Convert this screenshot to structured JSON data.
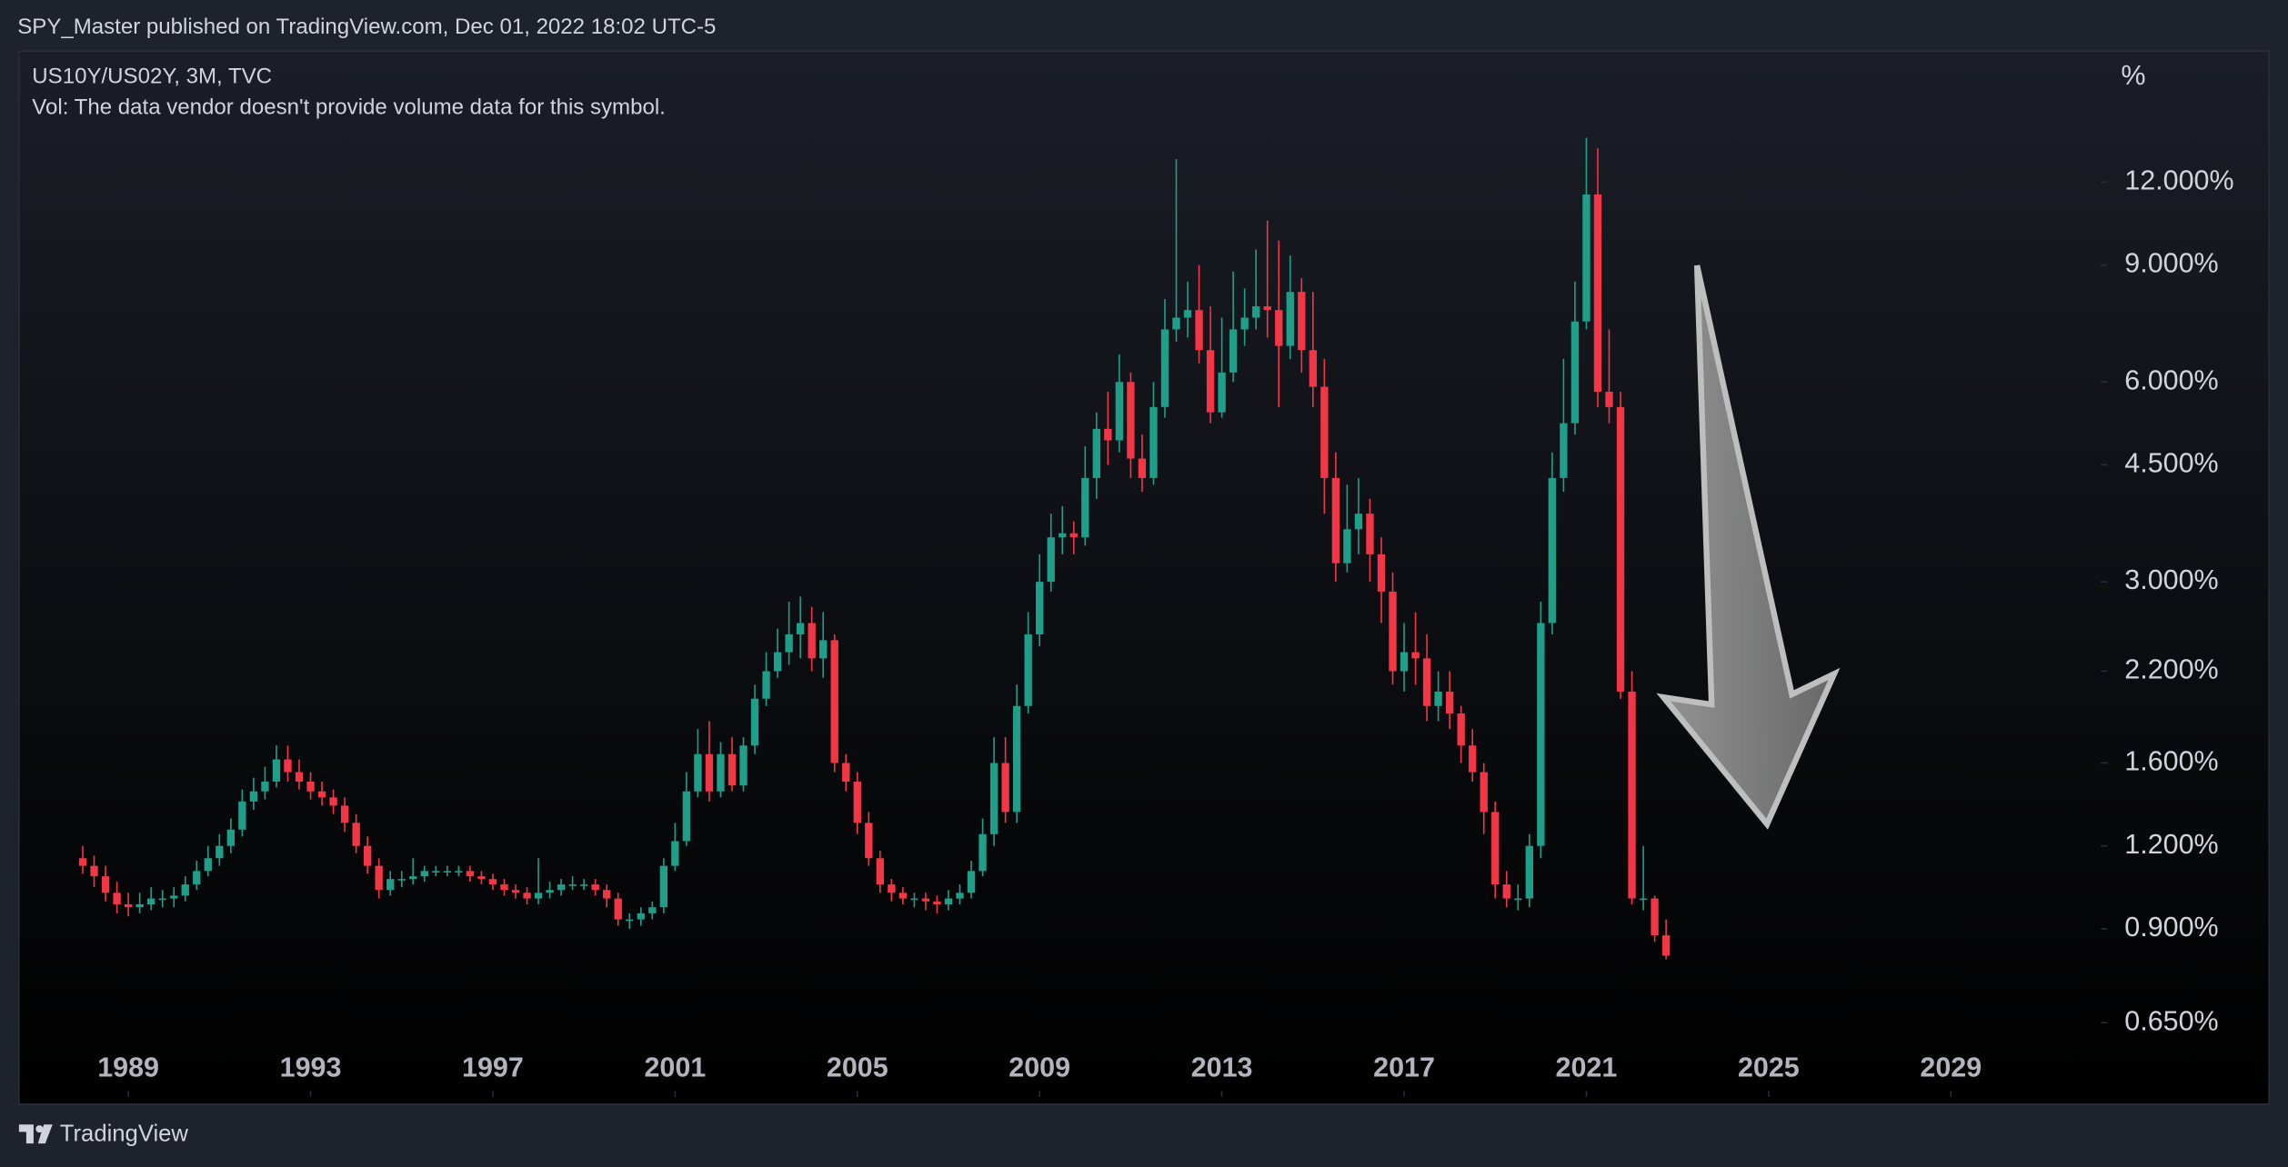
{
  "header": "SPY_Master published on TradingView.com, Dec 01, 2022 18:02 UTC-5",
  "footer": "TradingView",
  "chart_data": {
    "type": "candlestick",
    "title": "US10Y/US02Y, 3M, TVC",
    "subtitle": "Vol: The data vendor doesn't provide volume data for this symbol.",
    "y_axis_label": "%",
    "log_scale": true,
    "up_color": "#1f9e89",
    "down_color": "#f23645",
    "xlim": [
      1986.6,
      2032.3
    ],
    "xticks": [
      1989,
      1993,
      1997,
      2001,
      2005,
      2009,
      2013,
      2017,
      2021,
      2025,
      2029
    ],
    "ylim": [
      0.49,
      18.9
    ],
    "yticks": [
      {
        "value": 0.65,
        "label": "0.650%"
      },
      {
        "value": 0.9,
        "label": "0.900%"
      },
      {
        "value": 1.2,
        "label": "1.200%"
      },
      {
        "value": 1.6,
        "label": "1.600%"
      },
      {
        "value": 2.2,
        "label": "2.200%"
      },
      {
        "value": 3.0,
        "label": "3.000%"
      },
      {
        "value": 4.5,
        "label": "4.500%"
      },
      {
        "value": 6.0,
        "label": "6.000%"
      },
      {
        "value": 9.0,
        "label": "9.000%"
      },
      {
        "value": 12.0,
        "label": "12.000%"
      }
    ],
    "x": [
      1988,
      1988.25,
      1988.5,
      1988.75,
      1989,
      1989.25,
      1989.5,
      1989.75,
      1990,
      1990.25,
      1990.5,
      1990.75,
      1991,
      1991.25,
      1991.5,
      1991.75,
      1992,
      1992.25,
      1992.5,
      1992.75,
      1993,
      1993.25,
      1993.5,
      1993.75,
      1994,
      1994.25,
      1994.5,
      1994.75,
      1995,
      1995.25,
      1995.5,
      1995.75,
      1996,
      1996.25,
      1996.5,
      1996.75,
      1997,
      1997.25,
      1997.5,
      1997.75,
      1998,
      1998.25,
      1998.5,
      1998.75,
      1999,
      1999.25,
      1999.5,
      1999.75,
      2000,
      2000.25,
      2000.5,
      2000.75,
      2001,
      2001.25,
      2001.5,
      2001.75,
      2002,
      2002.25,
      2002.5,
      2002.75,
      2003,
      2003.25,
      2003.5,
      2003.75,
      2004,
      2004.25,
      2004.5,
      2004.75,
      2005,
      2005.25,
      2005.5,
      2005.75,
      2006,
      2006.25,
      2006.5,
      2006.75,
      2007,
      2007.25,
      2007.5,
      2007.75,
      2008,
      2008.25,
      2008.5,
      2008.75,
      2009,
      2009.25,
      2009.5,
      2009.75,
      2010,
      2010.25,
      2010.5,
      2010.75,
      2011,
      2011.25,
      2011.5,
      2011.75,
      2012,
      2012.25,
      2012.5,
      2012.75,
      2013,
      2013.25,
      2013.5,
      2013.75,
      2014,
      2014.25,
      2014.5,
      2014.75,
      2015,
      2015.25,
      2015.5,
      2015.75,
      2016,
      2016.25,
      2016.5,
      2016.75,
      2017,
      2017.25,
      2017.5,
      2017.75,
      2018,
      2018.25,
      2018.5,
      2018.75,
      2019,
      2019.25,
      2019.5,
      2019.75,
      2020,
      2020.25,
      2020.5,
      2020.75,
      2021,
      2021.25,
      2021.5,
      2021.75,
      2022,
      2022.25,
      2022.5,
      2022.75
    ],
    "open": [
      1.15,
      1.12,
      1.08,
      1.02,
      0.98,
      0.97,
      0.98,
      1.0,
      1.0,
      1.01,
      1.05,
      1.1,
      1.15,
      1.2,
      1.27,
      1.4,
      1.45,
      1.5,
      1.62,
      1.55,
      1.5,
      1.45,
      1.42,
      1.38,
      1.3,
      1.2,
      1.12,
      1.03,
      1.07,
      1.07,
      1.08,
      1.1,
      1.1,
      1.1,
      1.1,
      1.08,
      1.07,
      1.05,
      1.03,
      1.02,
      1.0,
      1.02,
      1.03,
      1.05,
      1.05,
      1.05,
      1.03,
      1.0,
      0.93,
      0.93,
      0.95,
      0.97,
      1.12,
      1.22,
      1.45,
      1.65,
      1.45,
      1.65,
      1.48,
      1.7,
      2.0,
      2.2,
      2.35,
      2.5,
      2.6,
      2.3,
      2.45,
      1.6,
      1.5,
      1.3,
      1.15,
      1.05,
      1.02,
      1.0,
      1.0,
      0.99,
      0.98,
      1.0,
      1.02,
      1.1,
      1.25,
      1.6,
      1.35,
      1.95,
      2.5,
      3.0,
      3.5,
      3.55,
      3.5,
      4.3,
      5.1,
      4.9,
      6.0,
      4.6,
      4.3,
      5.5,
      7.2,
      7.5,
      7.7,
      6.7,
      5.4,
      6.2,
      7.2,
      7.5,
      7.8,
      7.7,
      6.8,
      8.2,
      6.7,
      5.9,
      4.3,
      3.2,
      3.6,
      3.8,
      3.3,
      2.9,
      2.2,
      2.35,
      2.3,
      1.95,
      2.05,
      1.9,
      1.7,
      1.55,
      1.35,
      1.05,
      1.0,
      1.0,
      1.2,
      2.6,
      4.3,
      5.2,
      7.4,
      11.5,
      5.8,
      5.5,
      2.05,
      1.0,
      1.0,
      0.88
    ],
    "high": [
      1.2,
      1.16,
      1.12,
      1.06,
      1.02,
      1.02,
      1.04,
      1.03,
      1.04,
      1.08,
      1.14,
      1.2,
      1.25,
      1.32,
      1.46,
      1.52,
      1.58,
      1.7,
      1.7,
      1.62,
      1.55,
      1.5,
      1.46,
      1.42,
      1.34,
      1.24,
      1.15,
      1.1,
      1.1,
      1.15,
      1.12,
      1.12,
      1.12,
      1.12,
      1.12,
      1.1,
      1.09,
      1.07,
      1.05,
      1.04,
      1.15,
      1.06,
      1.07,
      1.08,
      1.07,
      1.07,
      1.05,
      1.02,
      0.95,
      0.97,
      0.99,
      1.15,
      1.3,
      1.55,
      1.8,
      1.85,
      1.72,
      1.75,
      1.75,
      2.1,
      2.35,
      2.55,
      2.8,
      2.85,
      2.75,
      2.7,
      2.5,
      1.65,
      1.55,
      1.35,
      1.18,
      1.07,
      1.04,
      1.02,
      1.02,
      1.01,
      1.03,
      1.05,
      1.14,
      1.32,
      1.75,
      1.75,
      2.1,
      2.7,
      3.3,
      3.8,
      3.9,
      3.7,
      4.8,
      5.4,
      5.8,
      6.6,
      6.2,
      5.0,
      6.0,
      8.0,
      13.0,
      8.5,
      9.0,
      7.8,
      7.5,
      8.8,
      8.3,
      9.5,
      10.5,
      9.8,
      9.3,
      8.6,
      8.2,
      6.5,
      4.7,
      4.2,
      4.3,
      4.0,
      3.5,
      3.1,
      2.6,
      2.7,
      2.5,
      2.2,
      2.2,
      1.95,
      1.8,
      1.6,
      1.4,
      1.1,
      1.05,
      1.25,
      2.8,
      4.7,
      6.5,
      8.5,
      14.0,
      13.5,
      7.2,
      5.8,
      2.2,
      1.2,
      1.01,
      0.93
    ],
    "low": [
      1.09,
      1.04,
      0.99,
      0.95,
      0.94,
      0.95,
      0.96,
      0.97,
      0.97,
      0.99,
      1.03,
      1.08,
      1.12,
      1.17,
      1.24,
      1.36,
      1.41,
      1.47,
      1.5,
      1.46,
      1.41,
      1.38,
      1.34,
      1.26,
      1.17,
      1.09,
      1.0,
      1.01,
      1.04,
      1.05,
      1.06,
      1.08,
      1.08,
      1.08,
      1.06,
      1.05,
      1.03,
      1.01,
      1.0,
      0.98,
      0.98,
      1.0,
      1.01,
      1.03,
      1.03,
      1.01,
      0.97,
      0.91,
      0.9,
      0.91,
      0.93,
      0.95,
      1.1,
      1.2,
      1.42,
      1.4,
      1.42,
      1.45,
      1.45,
      1.65,
      1.95,
      2.15,
      2.25,
      2.3,
      2.2,
      2.15,
      1.55,
      1.45,
      1.25,
      1.12,
      1.02,
      0.99,
      0.98,
      0.97,
      0.96,
      0.95,
      0.96,
      0.98,
      1.0,
      1.08,
      1.2,
      1.3,
      1.3,
      1.9,
      2.4,
      2.9,
      3.3,
      3.3,
      3.4,
      4.0,
      4.5,
      4.7,
      4.3,
      4.1,
      4.2,
      5.3,
      6.9,
      7.0,
      6.4,
      5.2,
      5.3,
      6.0,
      6.8,
      7.2,
      7.0,
      5.5,
      6.5,
      6.2,
      5.5,
      3.8,
      3.0,
      3.1,
      3.3,
      3.0,
      2.6,
      2.1,
      2.05,
      2.1,
      1.85,
      1.85,
      1.8,
      1.6,
      1.5,
      1.25,
      1.0,
      0.97,
      0.96,
      0.97,
      1.15,
      2.5,
      4.1,
      5.0,
      7.2,
      5.5,
      5.2,
      2.0,
      0.98,
      0.96,
      0.86,
      0.81
    ],
    "close": [
      1.12,
      1.08,
      1.02,
      0.98,
      0.97,
      0.98,
      1.0,
      1.0,
      1.01,
      1.05,
      1.1,
      1.15,
      1.2,
      1.27,
      1.4,
      1.45,
      1.5,
      1.62,
      1.55,
      1.5,
      1.45,
      1.42,
      1.38,
      1.3,
      1.2,
      1.12,
      1.03,
      1.07,
      1.07,
      1.08,
      1.1,
      1.1,
      1.1,
      1.1,
      1.08,
      1.07,
      1.05,
      1.03,
      1.02,
      1.0,
      1.02,
      1.03,
      1.05,
      1.05,
      1.05,
      1.03,
      1.0,
      0.93,
      0.93,
      0.95,
      0.97,
      1.12,
      1.22,
      1.45,
      1.65,
      1.45,
      1.65,
      1.48,
      1.7,
      2.0,
      2.2,
      2.35,
      2.5,
      2.6,
      2.3,
      2.45,
      1.6,
      1.5,
      1.3,
      1.15,
      1.05,
      1.02,
      1.0,
      1.0,
      0.99,
      0.98,
      1.0,
      1.02,
      1.1,
      1.25,
      1.6,
      1.35,
      1.95,
      2.5,
      3.0,
      3.5,
      3.55,
      3.5,
      4.3,
      5.1,
      4.9,
      6.0,
      4.6,
      4.3,
      5.5,
      7.2,
      7.5,
      7.7,
      6.7,
      5.4,
      6.2,
      7.2,
      7.5,
      7.8,
      7.7,
      6.8,
      8.2,
      6.7,
      5.9,
      4.3,
      3.2,
      3.6,
      3.8,
      3.3,
      2.9,
      2.2,
      2.35,
      2.3,
      1.95,
      2.05,
      1.9,
      1.7,
      1.55,
      1.35,
      1.05,
      1.0,
      1.0,
      1.2,
      2.6,
      4.3,
      5.2,
      7.4,
      11.5,
      5.8,
      5.5,
      2.05,
      1.0,
      1.0,
      0.88,
      0.82
    ]
  }
}
